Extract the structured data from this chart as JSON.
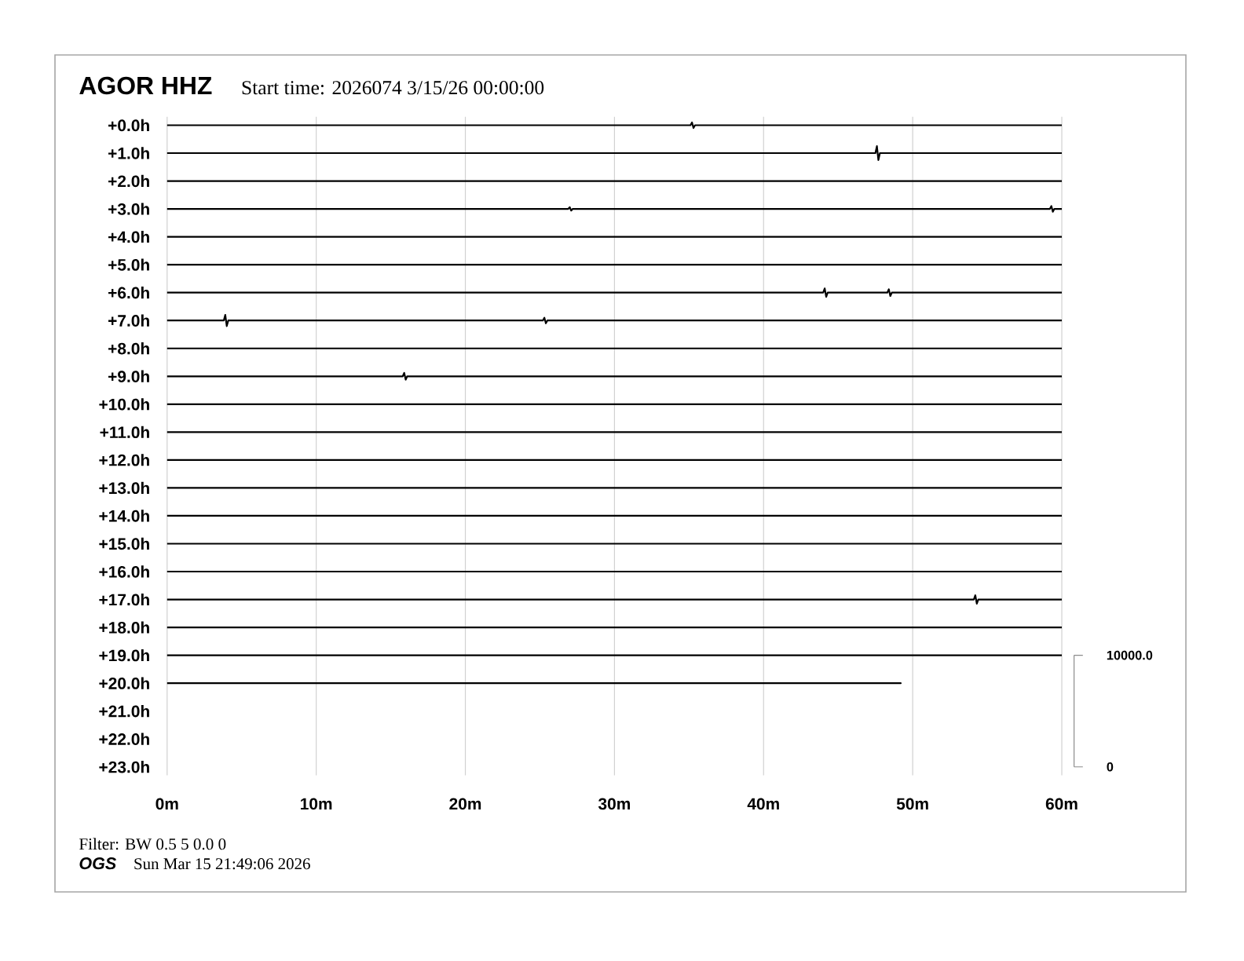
{
  "chart_data": {
    "type": "line",
    "title": "AGOR HHZ",
    "subtitle": "Start time: 2026074 3/15/26 00:00:00",
    "annotations": [
      "Filter: BW 0.5 5 0.0 0",
      "OGS",
      "Sun Mar 15 21:49:06 2026"
    ],
    "xlim": [
      0,
      60
    ],
    "xticks": [
      {
        "value": 0,
        "label": "0m"
      },
      {
        "value": 10,
        "label": "10m"
      },
      {
        "value": 20,
        "label": "20m"
      },
      {
        "value": 30,
        "label": "30m"
      },
      {
        "value": 40,
        "label": "40m"
      },
      {
        "value": 50,
        "label": "50m"
      },
      {
        "value": 60,
        "label": "60m"
      }
    ],
    "ylim": [
      23.3,
      -0.3
    ],
    "yticks": [
      {
        "value": 0,
        "label": "+0.0h"
      },
      {
        "value": 1,
        "label": "+1.0h"
      },
      {
        "value": 2,
        "label": "+2.0h"
      },
      {
        "value": 3,
        "label": "+3.0h"
      },
      {
        "value": 4,
        "label": "+4.0h"
      },
      {
        "value": 5,
        "label": "+5.0h"
      },
      {
        "value": 6,
        "label": "+6.0h"
      },
      {
        "value": 7,
        "label": "+7.0h"
      },
      {
        "value": 8,
        "label": "+8.0h"
      },
      {
        "value": 9,
        "label": "+9.0h"
      },
      {
        "value": 10,
        "label": "+10.0h"
      },
      {
        "value": 11,
        "label": "+11.0h"
      },
      {
        "value": 12,
        "label": "+12.0h"
      },
      {
        "value": 13,
        "label": "+13.0h"
      },
      {
        "value": 14,
        "label": "+14.0h"
      },
      {
        "value": 15,
        "label": "+15.0h"
      },
      {
        "value": 16,
        "label": "+16.0h"
      },
      {
        "value": 17,
        "label": "+17.0h"
      },
      {
        "value": 18,
        "label": "+18.0h"
      },
      {
        "value": 19,
        "label": "+19.0h"
      },
      {
        "value": 20,
        "label": "+20.0h"
      },
      {
        "value": 21,
        "label": "+21.0h"
      },
      {
        "value": 22,
        "label": "+22.0h"
      },
      {
        "value": 23,
        "label": "+23.0h"
      }
    ],
    "y2lim": [
      -750,
      58250
    ],
    "y2ticks": [
      0,
      {
        "value": 10000,
        "label": "10000.0"
      }
    ],
    "grid": "x",
    "marker": "none",
    "line_style": "solid",
    "series": [
      {
        "color": "#000000",
        "x": [
          0,
          35.1,
          35.2,
          35.3,
          35.4,
          60
        ],
        "values": [
          0,
          0,
          -0.1,
          0.1,
          0,
          0
        ]
      },
      {
        "color": "#000000",
        "x": [
          0,
          47.5,
          47.6,
          47.7,
          47.8,
          60
        ],
        "values": [
          1,
          1,
          0.75,
          1.25,
          1,
          1
        ]
      },
      {
        "color": "#000000",
        "x": [
          0,
          60
        ],
        "values": [
          2,
          2
        ]
      },
      {
        "color": "#000000",
        "x": [
          0,
          26.9,
          27.0,
          27.1,
          27.2,
          59.2,
          59.3,
          59.4,
          59.5,
          60
        ],
        "values": [
          3,
          3,
          2.94,
          3.06,
          3,
          3,
          2.9,
          3.1,
          3,
          3
        ]
      },
      {
        "color": "#000000",
        "x": [
          0,
          60
        ],
        "values": [
          4,
          4
        ]
      },
      {
        "color": "#000000",
        "x": [
          0,
          60
        ],
        "values": [
          5,
          5
        ]
      },
      {
        "color": "#000000",
        "x": [
          0,
          44.0,
          44.1,
          44.2,
          44.3,
          48.3,
          48.4,
          48.5,
          48.6,
          60
        ],
        "values": [
          6,
          6,
          5.85,
          6.15,
          6,
          6,
          5.88,
          6.12,
          6,
          6
        ]
      },
      {
        "color": "#000000",
        "x": [
          0,
          3.8,
          3.9,
          4.0,
          4.1,
          25.2,
          25.3,
          25.4,
          25.5,
          60
        ],
        "values": [
          7,
          7,
          6.8,
          7.2,
          7,
          7,
          6.9,
          7.1,
          7,
          7
        ]
      },
      {
        "color": "#000000",
        "x": [
          0,
          60
        ],
        "values": [
          8,
          8
        ]
      },
      {
        "color": "#000000",
        "x": [
          0,
          15.8,
          15.9,
          16.0,
          16.1,
          60
        ],
        "values": [
          9,
          9,
          8.88,
          9.12,
          9,
          9
        ]
      },
      {
        "color": "#000000",
        "x": [
          0,
          60
        ],
        "values": [
          10,
          10
        ]
      },
      {
        "color": "#000000",
        "x": [
          0,
          60
        ],
        "values": [
          11,
          11
        ]
      },
      {
        "color": "#000000",
        "x": [
          0,
          60
        ],
        "values": [
          12,
          12
        ]
      },
      {
        "color": "#000000",
        "x": [
          0,
          60
        ],
        "values": [
          13,
          13
        ]
      },
      {
        "color": "#000000",
        "x": [
          0,
          60
        ],
        "values": [
          14,
          14
        ]
      },
      {
        "color": "#000000",
        "x": [
          0,
          60
        ],
        "values": [
          15,
          15
        ]
      },
      {
        "color": "#000000",
        "x": [
          0,
          60
        ],
        "values": [
          16,
          16
        ]
      },
      {
        "color": "#000000",
        "x": [
          0,
          54.1,
          54.2,
          54.3,
          54.4,
          60
        ],
        "values": [
          17,
          17,
          16.85,
          17.15,
          17,
          17
        ]
      },
      {
        "color": "#000000",
        "x": [
          0,
          60
        ],
        "values": [
          18,
          18
        ]
      },
      {
        "color": "#000000",
        "x": [
          0,
          60
        ],
        "values": [
          19,
          19
        ]
      },
      {
        "color": "#000000",
        "x": [
          0,
          49.2
        ],
        "values": [
          20,
          20
        ]
      }
    ]
  }
}
